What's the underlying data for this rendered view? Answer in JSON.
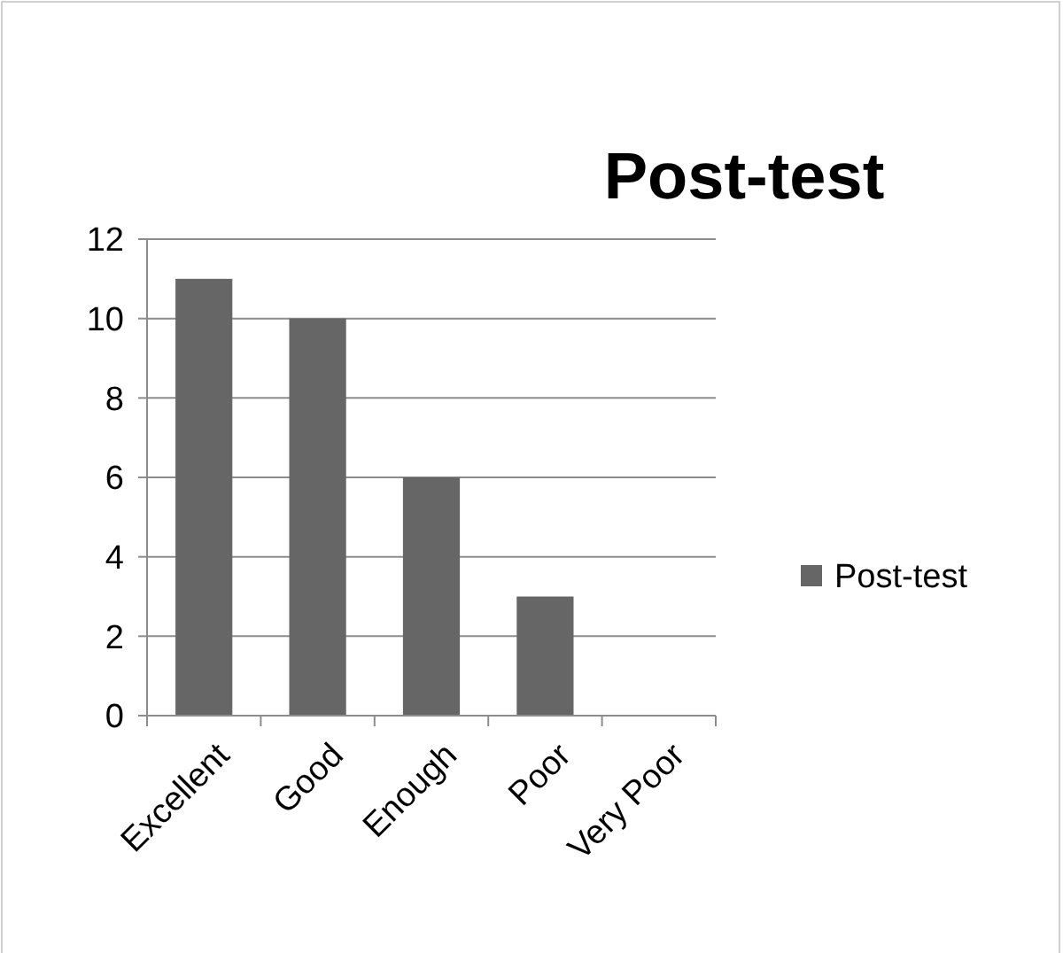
{
  "chart_data": {
    "type": "bar",
    "title": "Post-test",
    "categories": [
      "Excellent",
      "Good",
      "Enough",
      "Poor",
      "Very Poor"
    ],
    "series": [
      {
        "name": "Post-test",
        "color": "#666666",
        "values": [
          11,
          10,
          6,
          3,
          0
        ]
      }
    ],
    "ylim": [
      0,
      12
    ],
    "yticks": [
      0,
      2,
      4,
      6,
      8,
      10,
      12
    ],
    "grid": "y",
    "legend": "right"
  }
}
